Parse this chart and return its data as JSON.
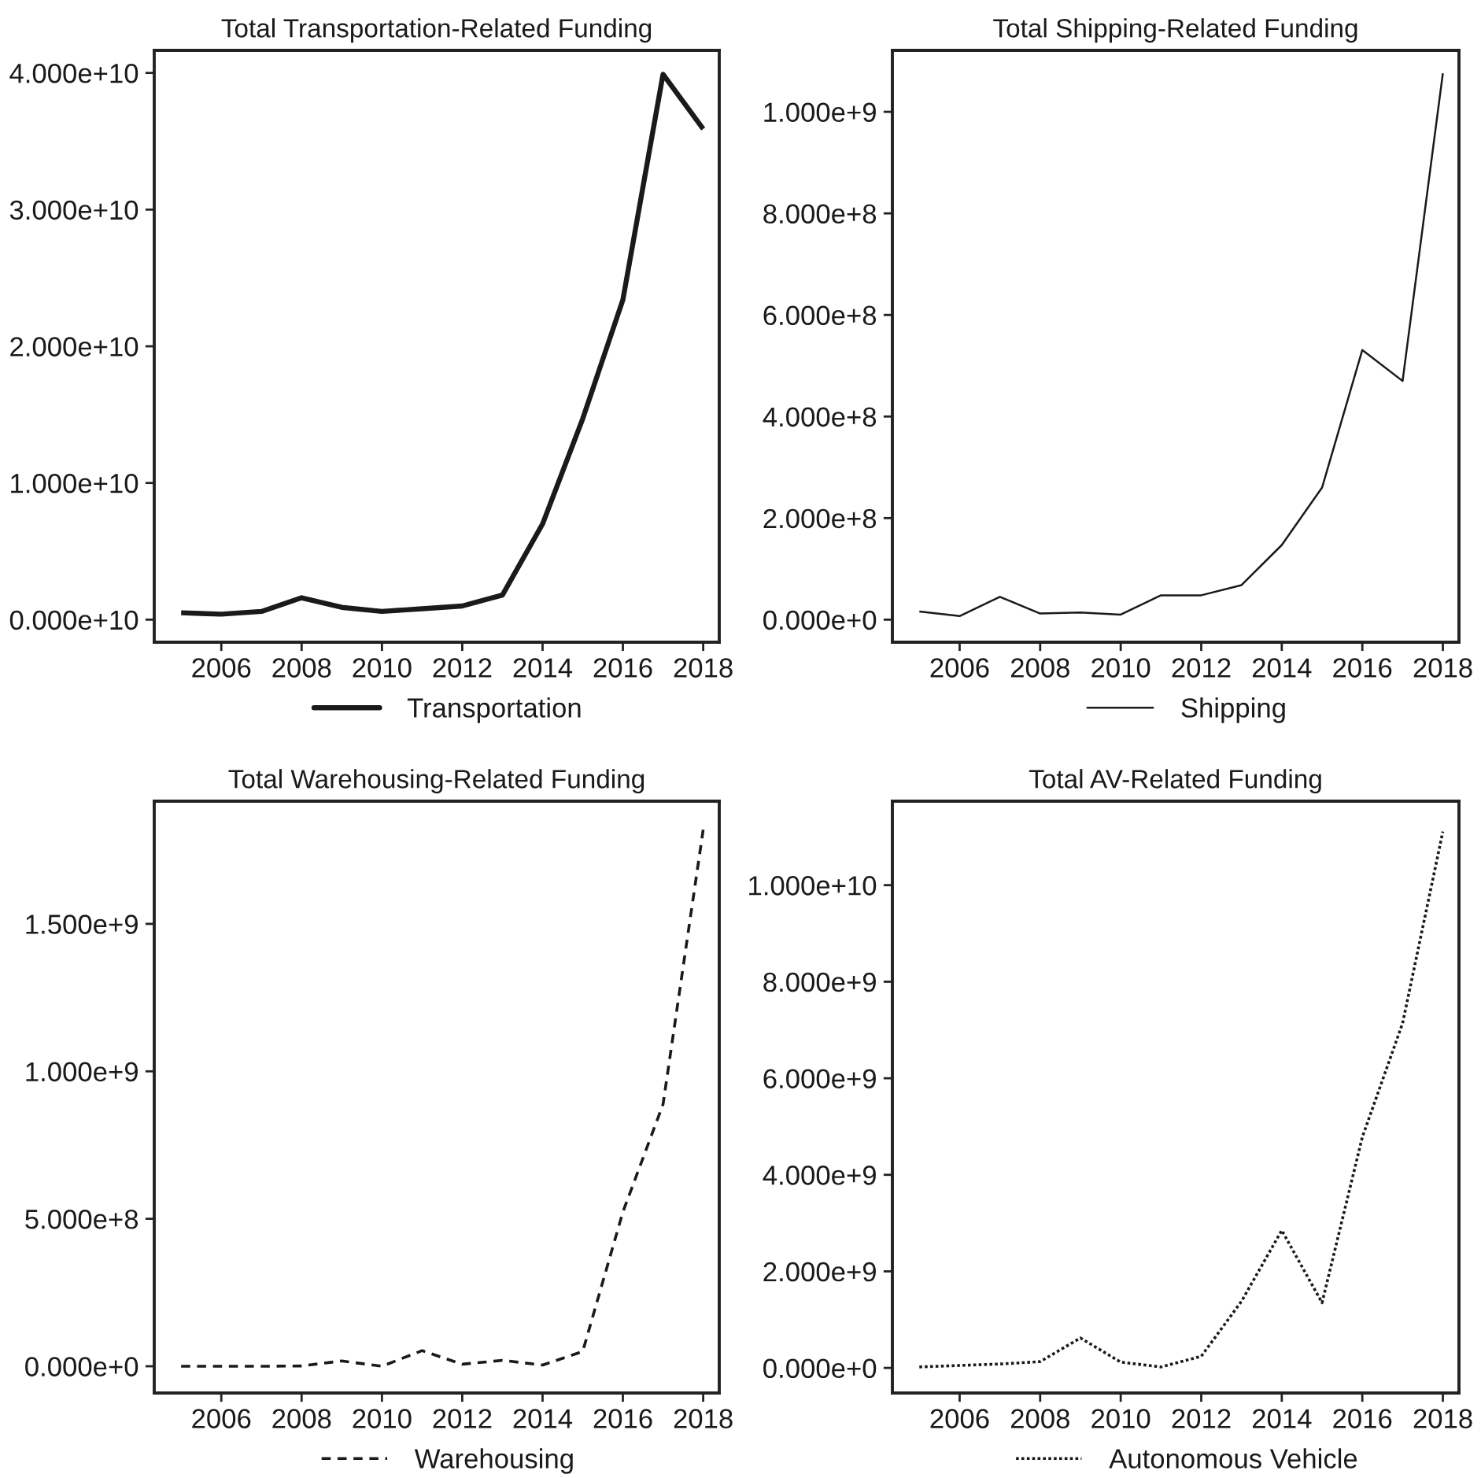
{
  "chart_data": [
    {
      "type": "line",
      "title": "Total Transportation-Related Funding",
      "x": [
        2005,
        2006,
        2007,
        2008,
        2009,
        2010,
        2011,
        2012,
        2013,
        2014,
        2015,
        2016,
        2017,
        2018
      ],
      "series": [
        {
          "name": "Transportation",
          "color": "#1a1a1a",
          "line_style": "solid",
          "values": [
            500000000,
            400000000,
            600000000,
            1600000000,
            900000000,
            600000000,
            800000000,
            1000000000,
            1800000000,
            7000000000,
            14700000000,
            23400000000,
            39900000000,
            35900000000
          ]
        }
      ],
      "xlim": [
        2004.33,
        2018.4
      ],
      "xticks": [
        2006,
        2008,
        2010,
        2012,
        2014,
        2016,
        2018
      ],
      "ylim": [
        -1650000000,
        41650000000
      ],
      "yticks": [
        {
          "value": 0,
          "label": "0.000e+10"
        },
        {
          "value": 10000000000,
          "label": "1.000e+10"
        },
        {
          "value": 20000000000,
          "label": "2.000e+10"
        },
        {
          "value": 30000000000,
          "label": "3.000e+10"
        },
        {
          "value": 40000000000,
          "label": "4.000e+10"
        }
      ],
      "legend": "bottom"
    },
    {
      "type": "line",
      "title": "Total Shipping-Related Funding",
      "x": [
        2005,
        2006,
        2007,
        2008,
        2009,
        2010,
        2011,
        2012,
        2013,
        2014,
        2015,
        2016,
        2017,
        2018
      ],
      "series": [
        {
          "name": "Shipping",
          "color": "#1a1a1a",
          "line_style": "solid",
          "values": [
            16000000,
            7000000,
            45000000,
            12000000,
            14000000,
            10000000,
            48000000,
            48000000,
            68000000,
            147000000,
            260000000,
            531000000,
            470000000,
            1076000000
          ]
        }
      ],
      "xlim": [
        2004.33,
        2018.4
      ],
      "xticks": [
        2006,
        2008,
        2010,
        2012,
        2014,
        2016,
        2018
      ],
      "ylim": [
        -44400000,
        1121000000
      ],
      "yticks": [
        {
          "value": 0,
          "label": "0.000e+0"
        },
        {
          "value": 200000000,
          "label": "2.000e+8"
        },
        {
          "value": 400000000,
          "label": "4.000e+8"
        },
        {
          "value": 600000000,
          "label": "6.000e+8"
        },
        {
          "value": 800000000,
          "label": "8.000e+8"
        },
        {
          "value": 1000000000,
          "label": "1.000e+9"
        }
      ],
      "legend": "bottom"
    },
    {
      "type": "line",
      "title": "Total Warehousing-Related Funding",
      "x": [
        2005,
        2006,
        2007,
        2008,
        2009,
        2010,
        2011,
        2012,
        2013,
        2014,
        2015,
        2016,
        2017,
        2018
      ],
      "series": [
        {
          "name": "Warehousing",
          "color": "#1a1a1a",
          "line_style": "dashed",
          "values": [
            0,
            0,
            0,
            1000000,
            18000000,
            0,
            53000000,
            7000000,
            20000000,
            4000000,
            50000000,
            523000000,
            888000000,
            1819000000
          ]
        }
      ],
      "xlim": [
        2004.33,
        2018.4
      ],
      "xticks": [
        2006,
        2008,
        2010,
        2012,
        2014,
        2016,
        2018
      ],
      "ylim": [
        -90700000,
        1916000000
      ],
      "yticks": [
        {
          "value": 0,
          "label": "0.000e+0"
        },
        {
          "value": 500000000,
          "label": "5.000e+8"
        },
        {
          "value": 1000000000,
          "label": "1.000e+9"
        },
        {
          "value": 1500000000,
          "label": "1.500e+9"
        }
      ],
      "legend": "bottom"
    },
    {
      "type": "line",
      "title": "Total AV-Related Funding",
      "x": [
        2005,
        2006,
        2007,
        2008,
        2009,
        2010,
        2011,
        2012,
        2013,
        2014,
        2015,
        2016,
        2017,
        2018
      ],
      "series": [
        {
          "name": "Autonomous Vehicle",
          "color": "#1a1a1a",
          "line_style": "dotted",
          "values": [
            20000000,
            50000000,
            80000000,
            130000000,
            620000000,
            120000000,
            20000000,
            240000000,
            1380000000,
            2850000000,
            1350000000,
            4780000000,
            7140000000,
            11110000000
          ]
        }
      ],
      "xlim": [
        2004.33,
        2018.4
      ],
      "xticks": [
        2006,
        2008,
        2010,
        2012,
        2014,
        2016,
        2018
      ],
      "ylim": [
        -520000000,
        11740000000
      ],
      "yticks": [
        {
          "value": 0,
          "label": "0.000e+0"
        },
        {
          "value": 2000000000,
          "label": "2.000e+9"
        },
        {
          "value": 4000000000,
          "label": "4.000e+9"
        },
        {
          "value": 6000000000,
          "label": "6.000e+9"
        },
        {
          "value": 8000000000,
          "label": "8.000e+9"
        },
        {
          "value": 10000000000,
          "label": "1.000e+10"
        }
      ],
      "legend": "bottom"
    }
  ]
}
